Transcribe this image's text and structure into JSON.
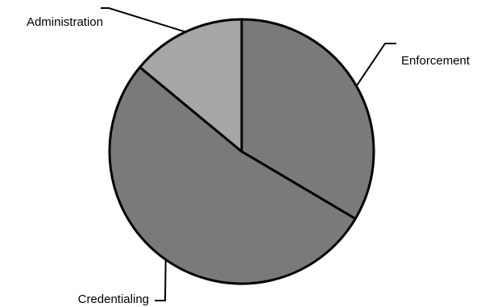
{
  "chart_data": {
    "type": "pie",
    "title": "",
    "legend": "none",
    "slices": [
      {
        "label": "Enforcement",
        "value": 33.5,
        "color": "#7a7a7a"
      },
      {
        "label": "Credentialing",
        "value": 52.5,
        "color": "#7a7a7a"
      },
      {
        "label": "Administration",
        "value": 14.0,
        "color": "#a6a6a6"
      }
    ]
  }
}
